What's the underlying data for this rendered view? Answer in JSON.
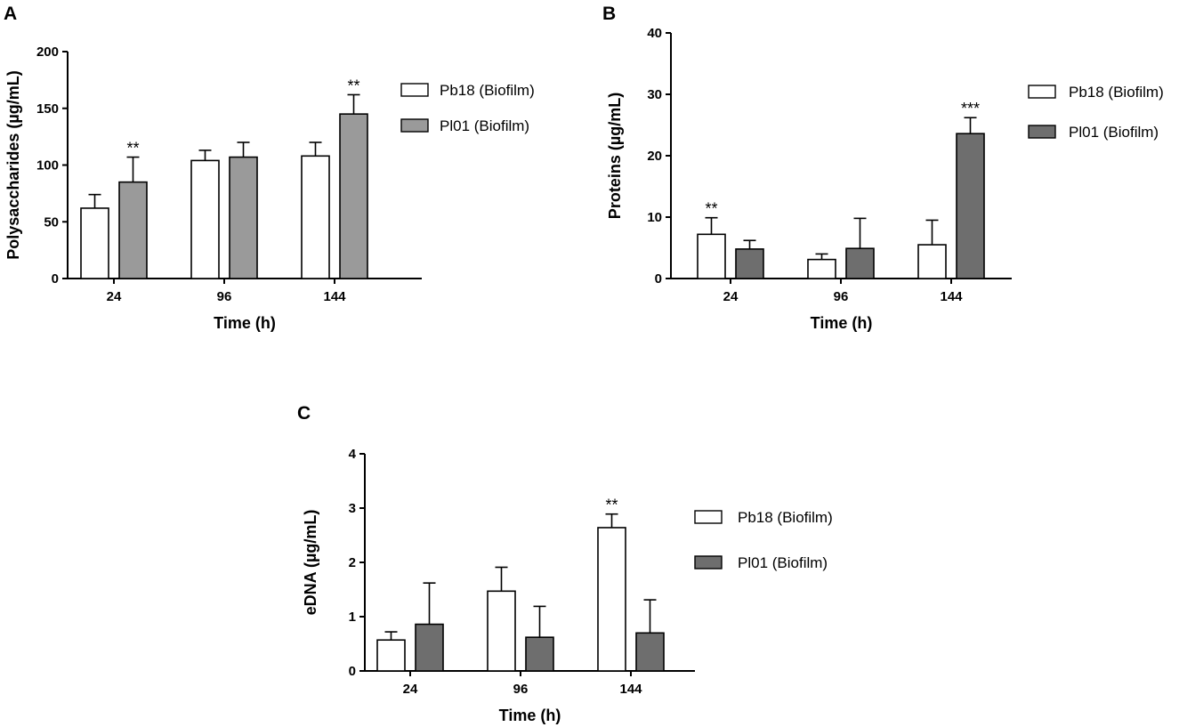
{
  "chart_data": [
    {
      "panel": "A",
      "type": "bar",
      "xlabel": "Time (h)",
      "ylabel": "Polysaccharides (µg/mL)",
      "ylim": [
        0,
        200
      ],
      "yticks": [
        0,
        50,
        100,
        150,
        200
      ],
      "categories": [
        "24",
        "96",
        "144"
      ],
      "series": [
        {
          "name": "Pb18 (Biofilm)",
          "color": "#ffffff",
          "values": [
            62,
            104,
            108
          ],
          "errors": [
            12,
            9,
            12
          ],
          "annotations": [
            "",
            "",
            ""
          ]
        },
        {
          "name": "Pl01 (Biofilm)",
          "color": "#9a9a9a",
          "values": [
            85,
            107,
            145
          ],
          "errors": [
            22,
            13,
            17
          ],
          "annotations": [
            "**",
            "",
            "**"
          ]
        }
      ]
    },
    {
      "panel": "B",
      "type": "bar",
      "xlabel": "Time (h)",
      "ylabel": "Proteins (µg/mL)",
      "ylim": [
        0,
        40
      ],
      "yticks": [
        0,
        10,
        20,
        30,
        40
      ],
      "categories": [
        "24",
        "96",
        "144"
      ],
      "series": [
        {
          "name": "Pb18 (Biofilm)",
          "color": "#ffffff",
          "values": [
            7.2,
            3.1,
            5.5
          ],
          "errors": [
            2.7,
            0.9,
            4.0
          ],
          "annotations": [
            "**",
            "",
            ""
          ]
        },
        {
          "name": "Pl01 (Biofilm)",
          "color": "#6e6e6e",
          "values": [
            4.8,
            4.9,
            23.6
          ],
          "errors": [
            1.4,
            4.9,
            2.6
          ],
          "annotations": [
            "",
            "",
            "***"
          ]
        }
      ]
    },
    {
      "panel": "C",
      "type": "bar",
      "xlabel": "Time (h)",
      "ylabel": "eDNA (µg/mL)",
      "ylim": [
        0,
        4
      ],
      "yticks": [
        0,
        1,
        2,
        3,
        4
      ],
      "categories": [
        "24",
        "96",
        "144"
      ],
      "series": [
        {
          "name": "Pb18 (Biofilm)",
          "color": "#ffffff",
          "values": [
            0.57,
            1.47,
            2.64
          ],
          "errors": [
            0.15,
            0.44,
            0.25
          ],
          "annotations": [
            "",
            "",
            "**"
          ]
        },
        {
          "name": "Pl01 (Biofilm)",
          "color": "#6e6e6e",
          "values": [
            0.86,
            0.62,
            0.7
          ],
          "errors": [
            0.76,
            0.57,
            0.61
          ],
          "annotations": [
            "",
            "",
            ""
          ]
        }
      ]
    }
  ]
}
